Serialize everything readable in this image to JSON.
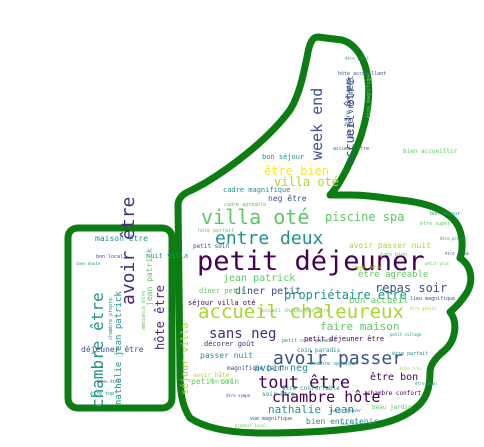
{
  "colors": {
    "outline": "#0b7d12",
    "palette": [
      "#440154",
      "#3b528b",
      "#21918c",
      "#5ec962",
      "#a8d82b",
      "#2c728e",
      "#472c7a",
      "#1f9e89",
      "#fde725",
      "#35b779"
    ]
  },
  "shape": "thumbs-up",
  "words": [
    {
      "text": "petit déjeuner",
      "c": 0
    },
    {
      "text": "accueil chaleureux",
      "c": 4
    },
    {
      "text": "villa oté",
      "c": 3
    },
    {
      "text": "avoir passer",
      "c": 1
    },
    {
      "text": "entre deux",
      "c": 2
    },
    {
      "text": "tout être",
      "c": 0
    },
    {
      "text": "chambre hôte",
      "c": 0
    },
    {
      "text": "week end",
      "c": 1
    },
    {
      "text": "accueil être",
      "c": 1
    },
    {
      "text": "avoir être",
      "c": 6
    },
    {
      "text": "chambre être",
      "c": 2
    },
    {
      "text": "sans neg",
      "c": 6
    },
    {
      "text": "propriétaire être",
      "c": 2
    },
    {
      "text": "repas soir",
      "c": 1
    },
    {
      "text": "piscine spa",
      "c": 3
    },
    {
      "text": "faire maison",
      "c": 3
    },
    {
      "text": "être bien",
      "c": 8
    },
    {
      "text": "villa oté",
      "c": 4
    },
    {
      "text": "hôte être",
      "c": 6
    },
    {
      "text": "nathalie jean",
      "c": 2
    },
    {
      "text": "jean patrick",
      "c": 3
    },
    {
      "text": "dîner petit",
      "c": 1
    },
    {
      "text": "séjour villa",
      "c": 4
    },
    {
      "text": "avoir neg",
      "c": 2
    },
    {
      "text": "être bon",
      "c": 0
    },
    {
      "text": "bon accueil",
      "c": 3
    },
    {
      "text": "être agréable",
      "c": 3
    },
    {
      "text": "avoir passer nuit",
      "c": 4
    },
    {
      "text": "maison être",
      "c": 2
    },
    {
      "text": "passer nuit",
      "c": 2
    },
    {
      "text": "petit coin",
      "c": 3
    },
    {
      "text": "bien entretenir",
      "c": 2
    },
    {
      "text": "être vraiment",
      "c": 1
    },
    {
      "text": "neg être",
      "c": 1
    },
    {
      "text": "cadre magnifique",
      "c": 2
    },
    {
      "text": "bon séjour",
      "c": 2
    },
    {
      "text": "petit déjeuner être",
      "c": 0
    },
    {
      "text": "déjeuner être",
      "c": 1
    },
    {
      "text": "dîner petit",
      "c": 3
    },
    {
      "text": "nuit villa",
      "c": 2
    },
    {
      "text": "décorer goût",
      "c": 6
    },
    {
      "text": "séjour villa oté",
      "c": 0
    },
    {
      "text": "petit soin",
      "c": 1
    },
    {
      "text": "être confortable",
      "c": 2
    },
    {
      "text": "jean patrick",
      "c": 3
    },
    {
      "text": "nathalie jean patrick",
      "c": 2
    },
    {
      "text": "coin paradis",
      "c": 2
    },
    {
      "text": "avoir hâte",
      "c": 4
    },
    {
      "text": "être toujours",
      "c": 1
    },
    {
      "text": "soir être",
      "c": 2
    },
    {
      "text": "bien accueillir",
      "c": 3
    },
    {
      "text": "cadre agréable",
      "c": 3
    },
    {
      "text": "magnifique jardin",
      "c": 1
    },
    {
      "text": "beau jardin",
      "c": 3
    },
    {
      "text": "chambre spacieux",
      "c": 2
    },
    {
      "text": "repas être",
      "c": 4
    },
    {
      "text": "hôte parfait",
      "c": 3
    },
    {
      "text": "petit coin paradis",
      "c": 2
    },
    {
      "text": "chambre confort",
      "c": 0
    },
    {
      "text": "accueil être",
      "c": 5
    },
    {
      "text": "bon local",
      "c": 1
    },
    {
      "text": "sans doute",
      "c": 2
    },
    {
      "text": "être super",
      "c": 3
    },
    {
      "text": "bon séjour",
      "c": 2
    },
    {
      "text": "très bien",
      "c": 3
    },
    {
      "text": "être propre",
      "c": 2
    },
    {
      "text": "être calme",
      "c": 1
    },
    {
      "text": "petit plus",
      "c": 3
    },
    {
      "text": "lieu magnifique",
      "c": 1
    },
    {
      "text": "être parfait",
      "c": 2
    },
    {
      "text": "hôte très",
      "c": 4
    },
    {
      "text": "être beau",
      "c": 2
    },
    {
      "text": "vue magnifique",
      "c": 1
    },
    {
      "text": "produit local",
      "c": 3
    },
    {
      "text": "être top",
      "c": 2
    },
    {
      "text": "bien être",
      "c": 1
    },
    {
      "text": "ambiance être",
      "c": 3
    },
    {
      "text": "chambre propre",
      "c": 2
    },
    {
      "text": "être génial",
      "c": 4
    },
    {
      "text": "accueil chaleureux être",
      "c": 3
    },
    {
      "text": "avoir trouver",
      "c": 1
    },
    {
      "text": "lieu être",
      "c": 2
    },
    {
      "text": "être magnifique",
      "c": 3
    },
    {
      "text": "hôte accueillant",
      "c": 1
    },
    {
      "text": "être idéal",
      "c": 2
    },
    {
      "text": "bon goût",
      "c": 3
    },
    {
      "text": "être sympa",
      "c": 1
    },
    {
      "text": "petit village",
      "c": 2
    }
  ]
}
